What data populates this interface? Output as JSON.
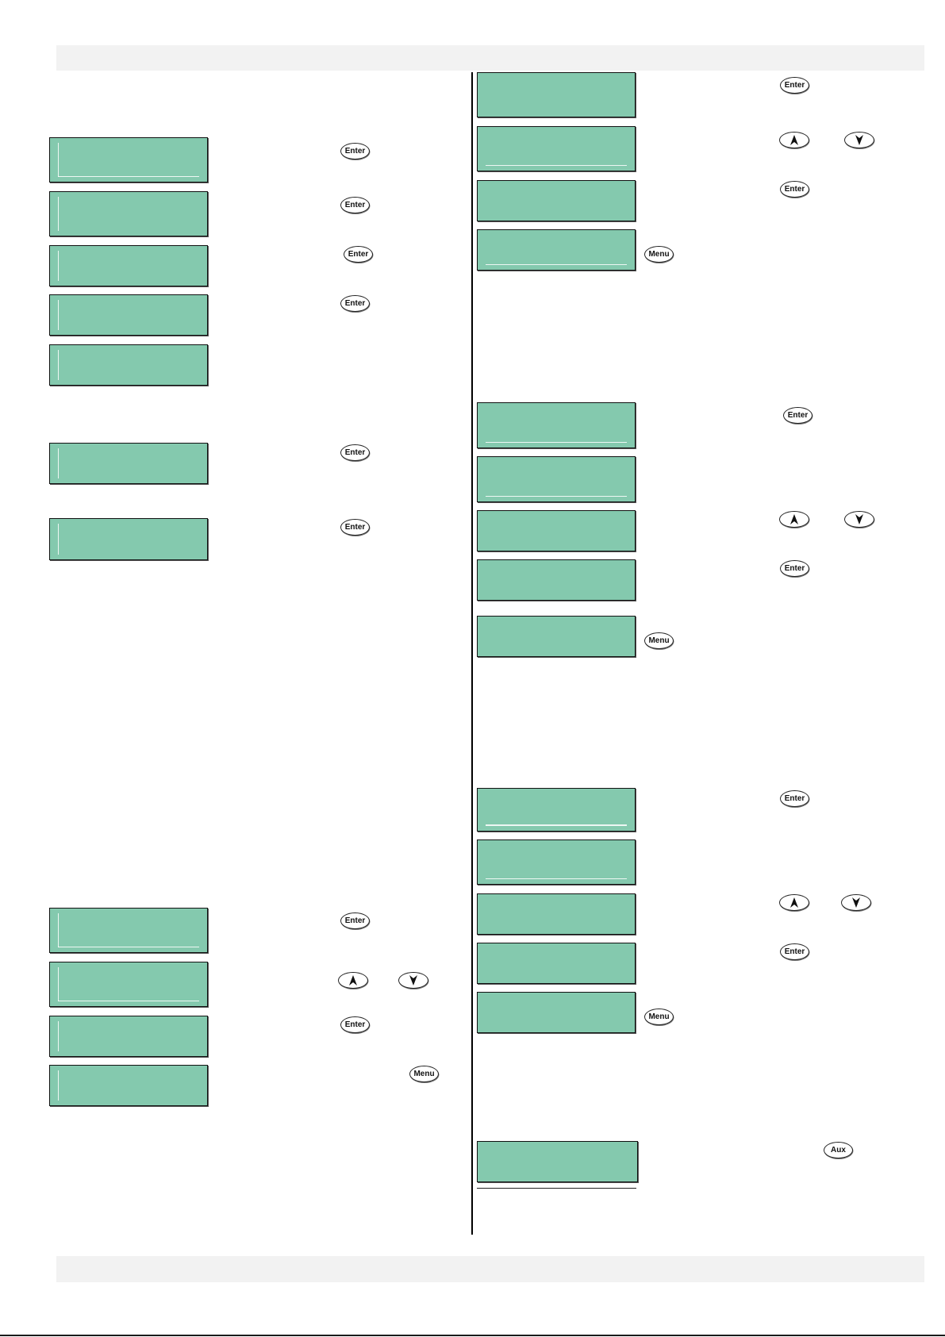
{
  "keys": {
    "enter": "Enter",
    "menu": "Menu",
    "aux": "Aux"
  },
  "lcd_color": "#84c9ae"
}
